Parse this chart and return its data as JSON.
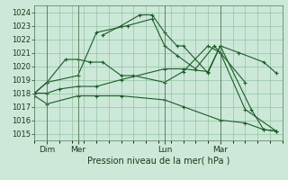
{
  "title": "Pression niveau de la mer( hPa )",
  "bg_color": "#cce8d8",
  "line_color": "#1a5c28",
  "grid_color": "#88bb99",
  "ylim": [
    1014.5,
    1024.5
  ],
  "yticks": [
    1015,
    1016,
    1017,
    1018,
    1019,
    1020,
    1021,
    1022,
    1023,
    1024
  ],
  "xlim": [
    0,
    20
  ],
  "x_ticks_labels": [
    "Dim",
    "Mer",
    "Lun",
    "Mar"
  ],
  "x_ticks_pos": [
    1.0,
    3.5,
    10.5,
    15.0
  ],
  "vlines": [
    1.0,
    3.5,
    10.5,
    15.0
  ],
  "lines": [
    {
      "x": [
        0,
        1.0,
        3.5,
        5.0,
        7.0,
        10.5,
        12.0,
        15.0,
        17.0,
        18.5,
        19.5
      ],
      "y": [
        1017.8,
        1017.2,
        1017.8,
        1017.8,
        1017.8,
        1017.5,
        1017.0,
        1016.0,
        1015.8,
        1015.3,
        1015.2
      ]
    },
    {
      "x": [
        0,
        1.0,
        2.0,
        3.5,
        5.0,
        7.0,
        10.5,
        12.0,
        14.0,
        15.0,
        16.5,
        18.5,
        19.5
      ],
      "y": [
        1018.0,
        1018.0,
        1018.3,
        1018.5,
        1018.5,
        1019.0,
        1019.8,
        1019.8,
        1019.6,
        1021.5,
        1021.0,
        1020.3,
        1019.5
      ]
    },
    {
      "x": [
        0,
        1.0,
        2.5,
        3.5,
        4.5,
        5.5,
        7.0,
        8.0,
        10.5,
        12.0,
        14.0,
        15.0,
        17.0
      ],
      "y": [
        1018.0,
        1018.8,
        1020.5,
        1020.5,
        1020.3,
        1020.3,
        1019.3,
        1019.3,
        1018.8,
        1019.6,
        1021.5,
        1021.0,
        1018.8
      ]
    },
    {
      "x": [
        0,
        1.0,
        3.5,
        5.0,
        7.5,
        9.5,
        10.5,
        11.5,
        13.0,
        14.5,
        15.0,
        17.0,
        19.5
      ],
      "y": [
        1018.0,
        1018.8,
        1019.3,
        1022.5,
        1023.0,
        1023.5,
        1021.5,
        1020.8,
        1019.8,
        1021.5,
        1021.0,
        1016.8,
        1015.2
      ]
    },
    {
      "x": [
        5.5,
        7.0,
        8.5,
        9.5,
        10.5,
        11.5,
        12.0,
        14.0,
        15.0,
        17.5,
        18.5,
        19.5
      ],
      "y": [
        1022.3,
        1023.0,
        1023.8,
        1023.8,
        1022.5,
        1021.5,
        1021.5,
        1019.5,
        1021.5,
        1016.8,
        1015.3,
        1015.2
      ]
    }
  ]
}
